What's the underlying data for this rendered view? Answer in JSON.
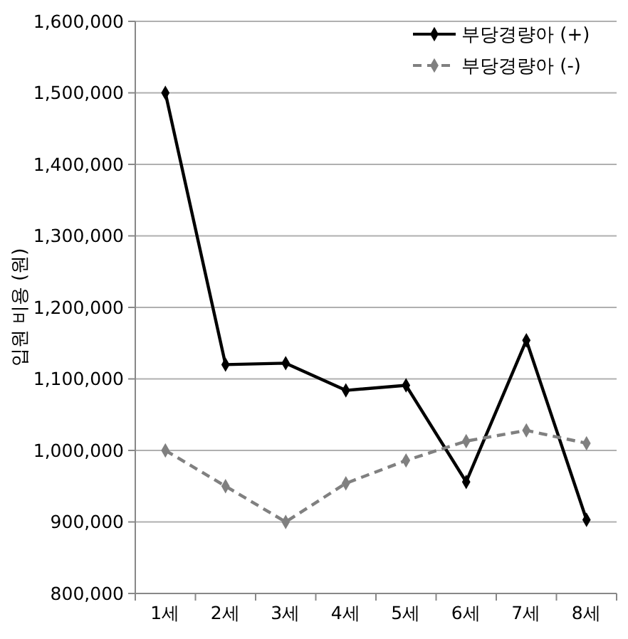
{
  "chart_data": {
    "type": "line",
    "ylabel": "입원 비용 (원)",
    "categories": [
      "1세",
      "2세",
      "3세",
      "4세",
      "5세",
      "6세",
      "7세",
      "8세"
    ],
    "series": [
      {
        "name": "부당경량아 (+)",
        "color": "#000000",
        "line_style": "solid",
        "values": [
          1500000,
          1120000,
          1122000,
          1084000,
          1091000,
          956000,
          1154000,
          903000
        ]
      },
      {
        "name": "부당경량아 (-)",
        "color": "#808080",
        "line_style": "dashed",
        "values": [
          1000000,
          950000,
          900000,
          954000,
          986000,
          1013000,
          1028000,
          1010000
        ]
      }
    ],
    "ylim": [
      800000,
      1600000
    ],
    "yticks": [
      {
        "value": 800000,
        "label": "800,000"
      },
      {
        "value": 900000,
        "label": "900,000"
      },
      {
        "value": 1000000,
        "label": "1,000,000"
      },
      {
        "value": 1100000,
        "label": "1,100,000"
      },
      {
        "value": 1200000,
        "label": "1,200,000"
      },
      {
        "value": 1300000,
        "label": "1,300,000"
      },
      {
        "value": 1400000,
        "label": "1,400,000"
      },
      {
        "value": 1500000,
        "label": "1,500,000"
      },
      {
        "value": 1600000,
        "label": "1,600,000"
      }
    ],
    "grid": "y",
    "legend": "top right",
    "marker": "diamond"
  }
}
